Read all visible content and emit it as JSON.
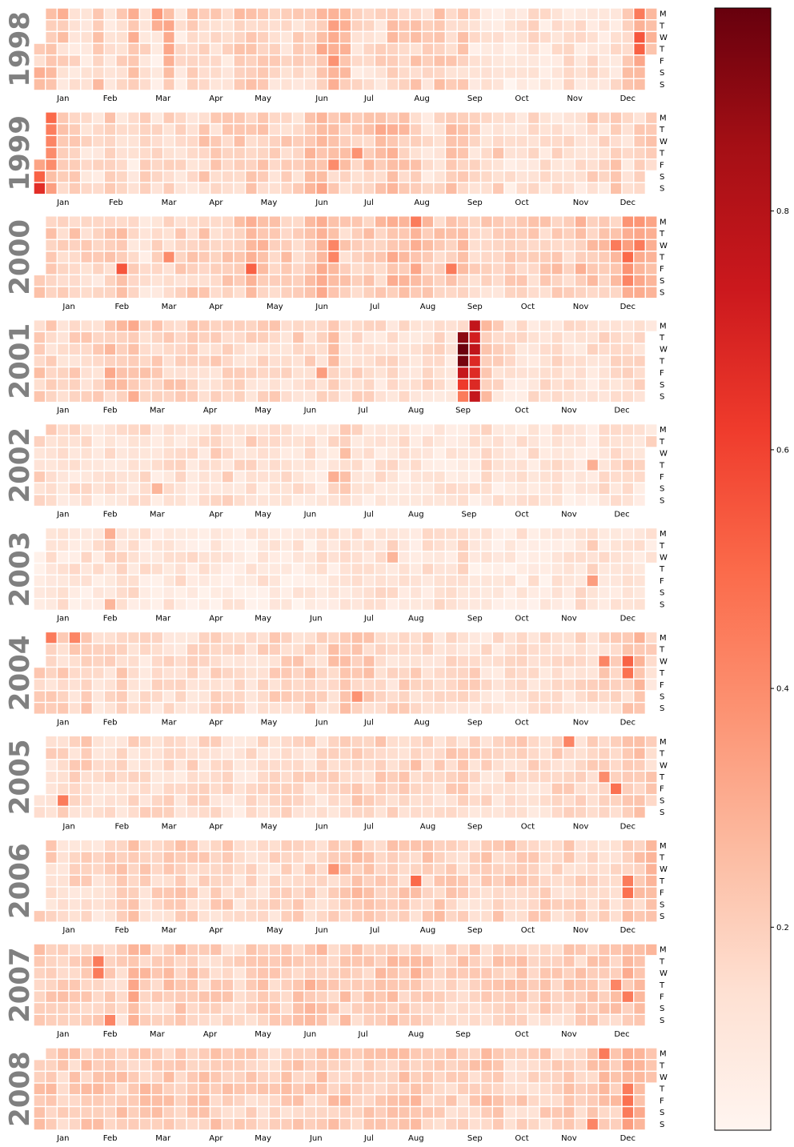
{
  "chart_data": {
    "type": "heatmap",
    "subtype": "calendar",
    "years": [
      "1998",
      "1999",
      "2000",
      "2001",
      "2002",
      "2003",
      "2004",
      "2005",
      "2006",
      "2007",
      "2008"
    ],
    "year_start_weekday": [
      3,
      4,
      5,
      0,
      1,
      2,
      3,
      5,
      6,
      0,
      1
    ],
    "day_labels": [
      "M",
      "T",
      "W",
      "T",
      "F",
      "S",
      "S"
    ],
    "month_labels": [
      "Jan",
      "Feb",
      "Mar",
      "Apr",
      "May",
      "Jun",
      "Jul",
      "Aug",
      "Sep",
      "Oct",
      "Nov",
      "Dec"
    ],
    "colormap": "Reds",
    "color_stops": [
      "#fff5f0",
      "#fee0d2",
      "#fcbba1",
      "#fc9272",
      "#fb6a4a",
      "#ef3b2c",
      "#cb181d",
      "#a50f15",
      "#67000d"
    ],
    "vmin": 0.03,
    "vmax": 0.97,
    "colorbar_ticks": [
      "0.2",
      "0.4",
      "0.6",
      "0.8"
    ],
    "colorbar_tick_values": [
      0.2,
      0.4,
      0.6,
      0.8
    ],
    "weekly_values": {
      "1998": [
        0.16,
        0.26,
        0.16,
        0.14,
        0.13,
        0.22,
        0.14,
        0.17,
        0.26,
        0.16,
        0.1,
        0.28,
        0.12,
        0.2,
        0.18,
        0.18,
        0.14,
        0.24,
        0.2,
        0.2,
        0.16,
        0.16,
        0.17,
        0.18,
        0.26,
        0.3,
        0.24,
        0.14,
        0.13,
        0.16,
        0.24,
        0.22,
        0.2,
        0.18,
        0.24,
        0.2,
        0.2,
        0.12,
        0.12,
        0.12,
        0.1,
        0.12,
        0.14,
        0.12,
        0.14,
        0.14,
        0.12,
        0.14,
        0.12,
        0.14,
        0.22,
        0.3,
        0.26
      ],
      "1999": [
        0.36,
        0.32,
        0.22,
        0.2,
        0.14,
        0.14,
        0.22,
        0.14,
        0.12,
        0.18,
        0.14,
        0.16,
        0.16,
        0.14,
        0.2,
        0.18,
        0.18,
        0.2,
        0.2,
        0.2,
        0.16,
        0.18,
        0.18,
        0.24,
        0.28,
        0.2,
        0.2,
        0.18,
        0.22,
        0.22,
        0.24,
        0.22,
        0.2,
        0.14,
        0.18,
        0.22,
        0.18,
        0.16,
        0.14,
        0.18,
        0.12,
        0.12,
        0.14,
        0.14,
        0.14,
        0.14,
        0.14,
        0.18,
        0.16,
        0.2,
        0.14,
        0.18,
        0.2
      ],
      "2000": [
        0.22,
        0.2,
        0.18,
        0.2,
        0.18,
        0.16,
        0.2,
        0.22,
        0.16,
        0.12,
        0.16,
        0.18,
        0.18,
        0.2,
        0.2,
        0.18,
        0.22,
        0.22,
        0.24,
        0.24,
        0.2,
        0.22,
        0.2,
        0.24,
        0.28,
        0.28,
        0.2,
        0.2,
        0.22,
        0.22,
        0.26,
        0.24,
        0.28,
        0.24,
        0.2,
        0.2,
        0.22,
        0.18,
        0.18,
        0.18,
        0.22,
        0.22,
        0.2,
        0.2,
        0.22,
        0.2,
        0.24,
        0.22,
        0.22,
        0.22,
        0.34,
        0.34,
        0.3
      ],
      "2001": [
        0.2,
        0.18,
        0.18,
        0.18,
        0.18,
        0.18,
        0.22,
        0.22,
        0.26,
        0.2,
        0.2,
        0.2,
        0.2,
        0.2,
        0.18,
        0.18,
        0.2,
        0.16,
        0.16,
        0.16,
        0.18,
        0.16,
        0.18,
        0.18,
        0.16,
        0.24,
        0.16,
        0.16,
        0.16,
        0.14,
        0.14,
        0.16,
        0.14,
        0.16,
        0.14,
        0.14,
        0.18,
        0.72,
        0.22,
        0.16,
        0.14,
        0.14,
        0.14,
        0.14,
        0.14,
        0.14,
        0.12,
        0.14,
        0.14,
        0.14,
        0.14,
        0.16,
        0.16
      ],
      "2002": [
        0.16,
        0.16,
        0.14,
        0.14,
        0.14,
        0.12,
        0.12,
        0.12,
        0.12,
        0.14,
        0.12,
        0.14,
        0.14,
        0.14,
        0.14,
        0.16,
        0.16,
        0.14,
        0.14,
        0.14,
        0.14,
        0.12,
        0.14,
        0.14,
        0.12,
        0.14,
        0.2,
        0.14,
        0.12,
        0.12,
        0.14,
        0.12,
        0.12,
        0.12,
        0.12,
        0.12,
        0.12,
        0.12,
        0.14,
        0.12,
        0.12,
        0.12,
        0.12,
        0.12,
        0.14,
        0.12,
        0.1,
        0.1,
        0.14,
        0.14,
        0.16,
        0.14,
        0.14
      ],
      "2003": [
        0.1,
        0.12,
        0.12,
        0.12,
        0.12,
        0.12,
        0.14,
        0.16,
        0.14,
        0.12,
        0.1,
        0.12,
        0.12,
        0.12,
        0.1,
        0.1,
        0.1,
        0.1,
        0.1,
        0.12,
        0.1,
        0.1,
        0.1,
        0.1,
        0.12,
        0.12,
        0.12,
        0.12,
        0.12,
        0.14,
        0.14,
        0.14,
        0.12,
        0.12,
        0.14,
        0.12,
        0.14,
        0.1,
        0.1,
        0.1,
        0.1,
        0.1,
        0.12,
        0.1,
        0.12,
        0.12,
        0.14,
        0.16,
        0.12,
        0.12,
        0.14,
        0.12,
        0.12
      ],
      "2004": [
        0.18,
        0.18,
        0.18,
        0.18,
        0.2,
        0.16,
        0.16,
        0.18,
        0.16,
        0.14,
        0.16,
        0.16,
        0.14,
        0.16,
        0.14,
        0.16,
        0.16,
        0.16,
        0.14,
        0.16,
        0.18,
        0.18,
        0.18,
        0.2,
        0.18,
        0.2,
        0.22,
        0.2,
        0.2,
        0.16,
        0.16,
        0.18,
        0.18,
        0.16,
        0.16,
        0.18,
        0.16,
        0.16,
        0.14,
        0.14,
        0.14,
        0.14,
        0.14,
        0.14,
        0.14,
        0.14,
        0.16,
        0.16,
        0.18,
        0.2,
        0.2,
        0.24,
        0.16
      ],
      "2005": [
        0.16,
        0.16,
        0.18,
        0.18,
        0.2,
        0.16,
        0.16,
        0.16,
        0.16,
        0.16,
        0.16,
        0.18,
        0.14,
        0.16,
        0.16,
        0.18,
        0.14,
        0.14,
        0.14,
        0.14,
        0.16,
        0.16,
        0.16,
        0.16,
        0.16,
        0.18,
        0.18,
        0.2,
        0.18,
        0.2,
        0.18,
        0.18,
        0.2,
        0.18,
        0.18,
        0.18,
        0.18,
        0.16,
        0.16,
        0.16,
        0.16,
        0.18,
        0.16,
        0.16,
        0.18,
        0.16,
        0.18,
        0.18,
        0.18,
        0.18,
        0.22,
        0.22,
        0.18
      ],
      "2006": [
        0.22,
        0.18,
        0.14,
        0.16,
        0.16,
        0.16,
        0.18,
        0.2,
        0.22,
        0.18,
        0.18,
        0.18,
        0.2,
        0.18,
        0.18,
        0.18,
        0.2,
        0.16,
        0.16,
        0.16,
        0.16,
        0.18,
        0.18,
        0.18,
        0.18,
        0.18,
        0.2,
        0.24,
        0.22,
        0.2,
        0.2,
        0.2,
        0.2,
        0.2,
        0.22,
        0.2,
        0.18,
        0.18,
        0.2,
        0.2,
        0.2,
        0.2,
        0.2,
        0.18,
        0.16,
        0.18,
        0.18,
        0.2,
        0.18,
        0.18,
        0.22,
        0.22,
        0.24
      ],
      "2007": [
        0.2,
        0.24,
        0.22,
        0.2,
        0.2,
        0.2,
        0.18,
        0.18,
        0.28,
        0.22,
        0.2,
        0.22,
        0.22,
        0.2,
        0.18,
        0.2,
        0.18,
        0.18,
        0.18,
        0.2,
        0.2,
        0.22,
        0.22,
        0.24,
        0.24,
        0.22,
        0.22,
        0.22,
        0.2,
        0.22,
        0.24,
        0.22,
        0.24,
        0.2,
        0.18,
        0.18,
        0.2,
        0.18,
        0.18,
        0.2,
        0.2,
        0.2,
        0.18,
        0.2,
        0.18,
        0.22,
        0.2,
        0.22,
        0.22,
        0.22,
        0.26,
        0.28,
        0.24
      ],
      "2008": [
        0.22,
        0.22,
        0.2,
        0.2,
        0.22,
        0.24,
        0.22,
        0.22,
        0.22,
        0.22,
        0.24,
        0.22,
        0.22,
        0.22,
        0.22,
        0.22,
        0.2,
        0.18,
        0.18,
        0.2,
        0.18,
        0.2,
        0.2,
        0.2,
        0.22,
        0.22,
        0.22,
        0.2,
        0.2,
        0.2,
        0.22,
        0.22,
        0.24,
        0.2,
        0.2,
        0.2,
        0.2,
        0.2,
        0.22,
        0.2,
        0.18,
        0.2,
        0.18,
        0.2,
        0.18,
        0.2,
        0.18,
        0.2,
        0.22,
        0.22,
        0.3,
        0.3,
        0.24
      ]
    },
    "highlighted_cells": {
      "1998": [
        [
          0,
          1,
          0.36
        ],
        [
          0,
          5,
          0.3
        ],
        [
          0,
          6,
          0.26
        ],
        [
          2,
          0,
          0.3
        ],
        [
          2,
          2,
          0.26
        ],
        [
          10,
          0,
          0.36
        ],
        [
          10,
          1,
          0.3
        ],
        [
          51,
          2,
          0.55
        ],
        [
          51,
          3,
          0.52
        ],
        [
          51,
          0,
          0.45
        ],
        [
          25,
          4,
          0.38
        ],
        [
          24,
          3,
          0.32
        ]
      ],
      "1999": [
        [
          0,
          5,
          0.52
        ],
        [
          0,
          6,
          0.66
        ],
        [
          1,
          0,
          0.5
        ],
        [
          1,
          1,
          0.44
        ],
        [
          1,
          2,
          0.42
        ],
        [
          1,
          3,
          0.4
        ],
        [
          1,
          4,
          0.4
        ],
        [
          25,
          4,
          0.4
        ],
        [
          27,
          3,
          0.38
        ],
        [
          29,
          1,
          0.32
        ]
      ],
      "2000": [
        [
          7,
          4,
          0.55
        ],
        [
          11,
          3,
          0.4
        ],
        [
          18,
          4,
          0.52
        ],
        [
          25,
          2,
          0.42
        ],
        [
          25,
          3,
          0.42
        ],
        [
          32,
          0,
          0.45
        ],
        [
          35,
          4,
          0.45
        ],
        [
          49,
          2,
          0.45
        ],
        [
          50,
          3,
          0.5
        ],
        [
          51,
          2,
          0.45
        ],
        [
          50,
          5,
          0.42
        ]
      ],
      "2001": [
        [
          36,
          1,
          0.9
        ],
        [
          36,
          2,
          0.96
        ],
        [
          36,
          3,
          0.94
        ],
        [
          36,
          4,
          0.75
        ],
        [
          36,
          5,
          0.62
        ],
        [
          36,
          6,
          0.45
        ],
        [
          24,
          4,
          0.35
        ],
        [
          6,
          4,
          0.32
        ]
      ],
      "2002": [
        [
          25,
          4,
          0.3
        ],
        [
          18,
          1,
          0.22
        ],
        [
          10,
          5,
          0.28
        ],
        [
          47,
          3,
          0.3
        ]
      ],
      "2003": [
        [
          6,
          0,
          0.3
        ],
        [
          6,
          6,
          0.28
        ],
        [
          47,
          4,
          0.35
        ],
        [
          30,
          2,
          0.28
        ]
      ],
      "2004": [
        [
          1,
          0,
          0.45
        ],
        [
          3,
          0,
          0.42
        ],
        [
          50,
          2,
          0.52
        ],
        [
          50,
          3,
          0.48
        ],
        [
          48,
          2,
          0.42
        ],
        [
          27,
          5,
          0.38
        ]
      ],
      "2005": [
        [
          2,
          5,
          0.45
        ],
        [
          45,
          0,
          0.42
        ],
        [
          48,
          3,
          0.4
        ],
        [
          49,
          4,
          0.48
        ]
      ],
      "2006": [
        [
          0,
          0,
          0.52
        ],
        [
          25,
          2,
          0.38
        ],
        [
          32,
          3,
          0.5
        ],
        [
          50,
          4,
          0.48
        ],
        [
          50,
          3,
          0.45
        ]
      ],
      "2007": [
        [
          5,
          1,
          0.45
        ],
        [
          5,
          2,
          0.45
        ],
        [
          6,
          6,
          0.42
        ],
        [
          50,
          4,
          0.45
        ],
        [
          49,
          3,
          0.42
        ]
      ],
      "2008": [
        [
          48,
          0,
          0.45
        ],
        [
          50,
          3,
          0.45
        ],
        [
          50,
          4,
          0.48
        ],
        [
          50,
          5,
          0.45
        ],
        [
          47,
          6,
          0.42
        ]
      ]
    }
  }
}
